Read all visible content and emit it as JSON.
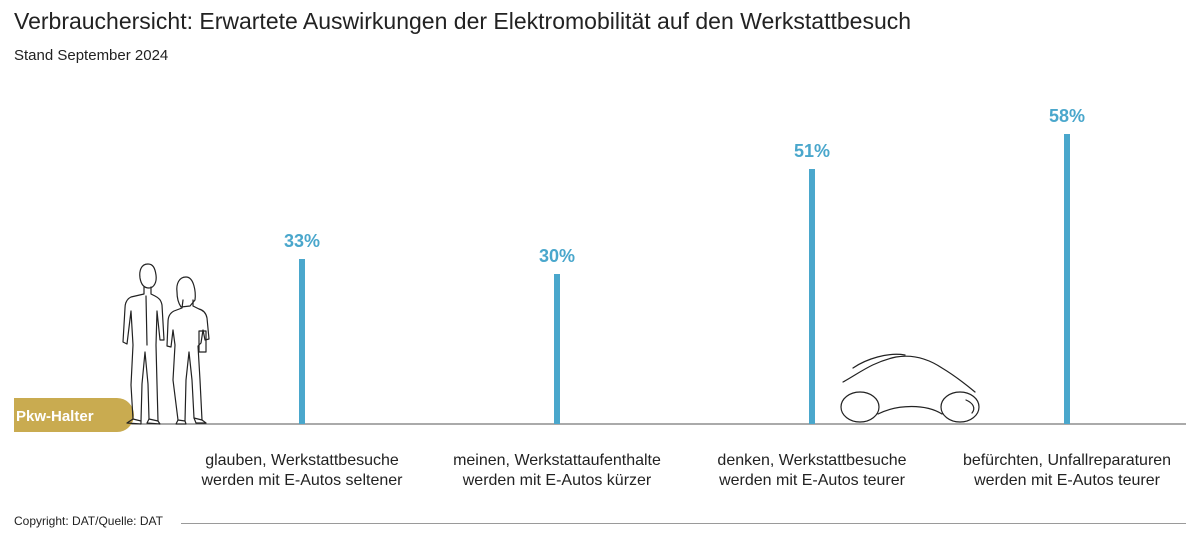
{
  "title": "Verbrauchersicht: Erwartete Auswirkungen der Elektromobilität auf den Werkstattbesuch",
  "subtitle": "Stand September 2024",
  "footer": "Copyright: DAT/Quelle: DAT",
  "group_label": "Pkw-Halter",
  "icons": {
    "people": "people-icon",
    "car": "car-icon"
  },
  "colors": {
    "bar": "#4aa7cc",
    "label": "#4aa7cc",
    "badge": "#c9ab50",
    "baseline": "#555555",
    "text": "#222222"
  },
  "chart_data": {
    "type": "bar",
    "categories": [
      [
        "glauben, Werkstattbesuche",
        "werden mit E-Autos seltener"
      ],
      [
        "meinen, Werkstattaufenthalte",
        "werden mit E-Autos kürzer"
      ],
      [
        "denken, Werkstattbesuche",
        "werden mit E-Autos teurer"
      ],
      [
        "befürchten, Unfallreparaturen",
        "werden mit E-Autos teurer"
      ]
    ],
    "values": [
      33,
      30,
      51,
      58
    ],
    "data_labels": [
      "33%",
      "30%",
      "51%",
      "58%"
    ],
    "unit": "%",
    "ylim": [
      0,
      60
    ],
    "grid": false,
    "legend": "none"
  }
}
